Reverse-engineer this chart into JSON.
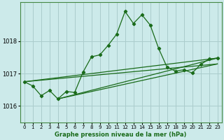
{
  "title": "Graphe pression niveau de la mer (hPa)",
  "bg_color": "#cceaea",
  "grid_color": "#aacccc",
  "line_color": "#1a6b1a",
  "xlim": [
    -0.5,
    23.5
  ],
  "ylim": [
    1015.5,
    1019.2
  ],
  "yticks": [
    1016,
    1017,
    1018
  ],
  "xticks": [
    0,
    1,
    2,
    3,
    4,
    5,
    6,
    7,
    8,
    9,
    10,
    11,
    12,
    13,
    14,
    15,
    16,
    17,
    18,
    19,
    20,
    21,
    22,
    23
  ],
  "series1_x": [
    0,
    1,
    2,
    3,
    4,
    5,
    6,
    7,
    8,
    9,
    10,
    11,
    12,
    13,
    14,
    15,
    16,
    17,
    18,
    19,
    20,
    21,
    22,
    23
  ],
  "series1_y": [
    1016.75,
    1016.62,
    1016.32,
    1016.48,
    1016.22,
    1016.45,
    1016.42,
    1017.05,
    1017.52,
    1017.58,
    1017.88,
    1018.22,
    1018.92,
    1018.55,
    1018.82,
    1018.5,
    1017.78,
    1017.2,
    1017.08,
    1017.12,
    1017.02,
    1017.28,
    1017.45,
    1017.48
  ],
  "series2_x": [
    0,
    23
  ],
  "series2_y": [
    1016.75,
    1017.48
  ],
  "series3_x": [
    4,
    23
  ],
  "series3_y": [
    1016.22,
    1017.48
  ],
  "series4_x": [
    0,
    23
  ],
  "series4_y": [
    1016.75,
    1017.3
  ],
  "series5_x": [
    4,
    23
  ],
  "series5_y": [
    1016.22,
    1017.3
  ]
}
